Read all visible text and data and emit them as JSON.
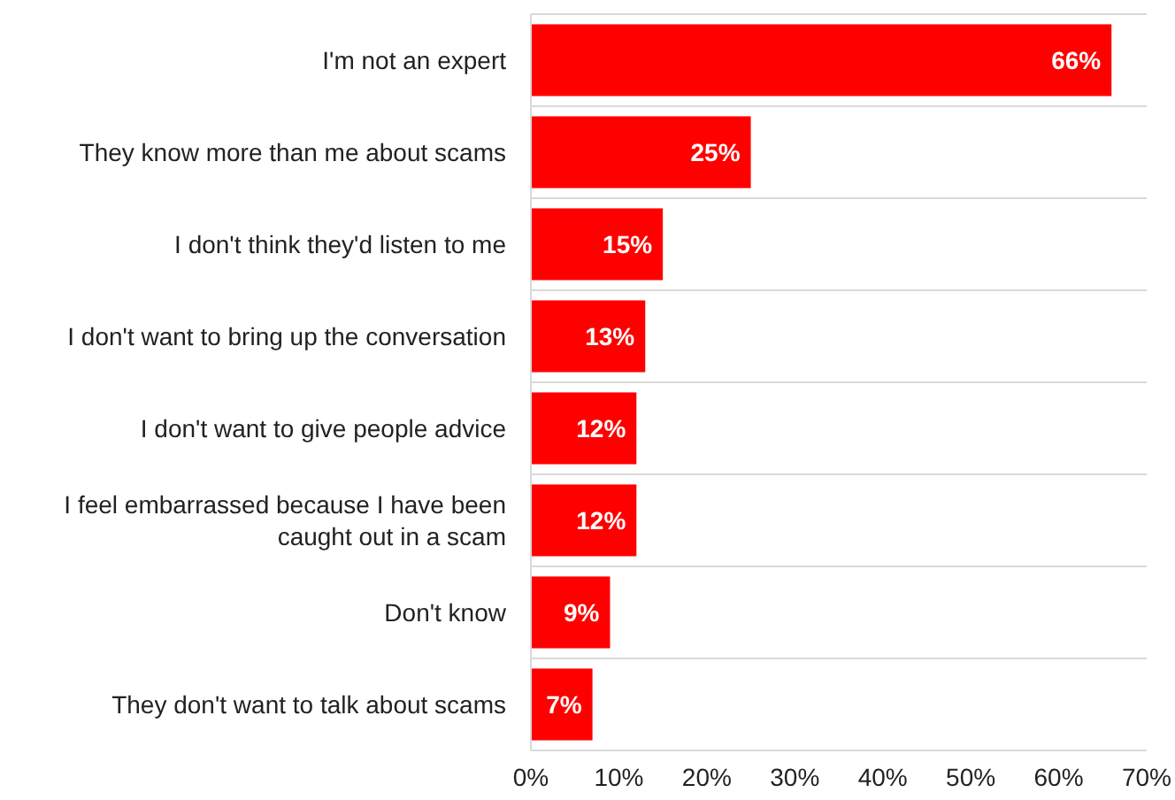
{
  "chart_data": {
    "type": "bar",
    "orientation": "horizontal",
    "categories": [
      "I'm not an expert",
      "They know more than me about scams",
      "I don't think they'd listen to me",
      "I don't want to bring up the conversation",
      "I don't want to give people advice",
      "I feel embarrassed because I have been caught out in a scam",
      "Don't know",
      "They don't want to talk about scams"
    ],
    "values": [
      66,
      25,
      15,
      13,
      12,
      12,
      9,
      7
    ],
    "color": "#ff0000",
    "xlim": [
      0,
      70
    ],
    "xticks": [
      {
        "value": 0,
        "label": "0%"
      },
      {
        "value": 10,
        "label": "10%"
      },
      {
        "value": 20,
        "label": "20%"
      },
      {
        "value": 30,
        "label": "30%"
      },
      {
        "value": 40,
        "label": "40%"
      },
      {
        "value": 50,
        "label": "50%"
      },
      {
        "value": 60,
        "label": "60%"
      },
      {
        "value": 70,
        "label": "70%"
      }
    ],
    "value_labels": [
      "66%",
      "25%",
      "15%",
      "13%",
      "12%",
      "12%",
      "9%",
      "7%"
    ],
    "grid": "y"
  }
}
